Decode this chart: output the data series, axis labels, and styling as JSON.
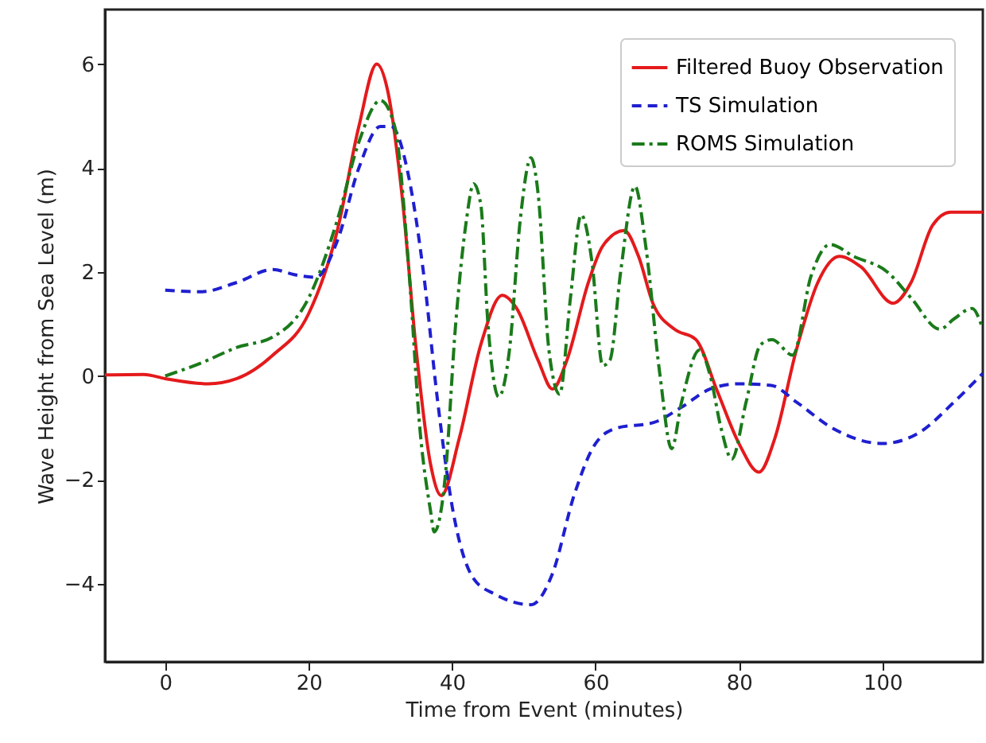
{
  "chart_data": {
    "type": "line",
    "xlabel": "Time from Event (minutes)",
    "ylabel": "Wave Height from Sea Level (m)",
    "xlim": [
      -8.4,
      114
    ],
    "ylim": [
      -5.5,
      7.05
    ],
    "xticks": [
      0,
      20,
      40,
      60,
      80,
      100
    ],
    "yticks": [
      -4,
      -2,
      0,
      2,
      4,
      6
    ],
    "grid": false,
    "legend": "top right",
    "marker": "none",
    "series": [
      {
        "name": "Filtered Buoy Observation",
        "color": "#e41a1c",
        "line_style": "solid",
        "x": [
          -8.4,
          -3,
          0,
          6,
          10,
          15,
          20,
          24,
          27,
          29.5,
          31,
          33,
          35,
          37,
          38.5,
          41,
          44,
          47,
          49,
          52,
          54,
          56,
          59,
          61,
          64,
          66,
          68,
          71,
          74,
          77,
          80,
          82.8,
          85,
          88,
          91,
          94,
          97,
          101.5,
          104,
          107,
          109.5,
          114
        ],
        "values": [
          0.02,
          0.03,
          -0.05,
          -0.15,
          -0.05,
          0.4,
          1.2,
          2.8,
          4.8,
          6.0,
          5.5,
          3.5,
          0.5,
          -1.7,
          -2.3,
          -1.2,
          0.6,
          1.55,
          1.3,
          0.3,
          -0.25,
          0.3,
          1.8,
          2.5,
          2.8,
          2.3,
          1.4,
          0.9,
          0.7,
          -0.3,
          -1.3,
          -1.85,
          -1.2,
          0.5,
          1.8,
          2.3,
          2.1,
          1.4,
          1.8,
          2.9,
          3.15,
          3.15
        ]
      },
      {
        "name": "TS Simulation",
        "color": "#1f1fd0",
        "line_style": "dashed",
        "x": [
          0,
          5,
          10,
          15,
          18,
          21,
          24,
          27,
          30,
          31.5,
          34,
          36,
          38,
          40,
          43,
          46,
          51,
          54,
          57,
          60,
          63,
          68,
          72,
          76,
          80,
          84.5,
          88,
          93,
          100,
          105,
          110,
          114
        ],
        "values": [
          1.65,
          1.62,
          1.8,
          2.05,
          1.95,
          1.9,
          2.6,
          4.0,
          4.8,
          4.8,
          3.8,
          2.0,
          -0.5,
          -2.5,
          -3.9,
          -4.2,
          -4.4,
          -3.8,
          -2.3,
          -1.3,
          -1.0,
          -0.9,
          -0.6,
          -0.25,
          -0.15,
          -0.18,
          -0.5,
          -1.0,
          -1.3,
          -1.1,
          -0.5,
          0.05
        ]
      },
      {
        "name": "ROMS Simulation",
        "color": "#1a7a1a",
        "line_style": "dashdot",
        "x": [
          0,
          5,
          10,
          15,
          20,
          24,
          27,
          30,
          32,
          34,
          35.5,
          37,
          37.5,
          39,
          40.5,
          42,
          43,
          44,
          45,
          46.5,
          48,
          49.5,
          51,
          52,
          53.5,
          55,
          56.5,
          58,
          59.5,
          61,
          62,
          63.5,
          65.5,
          67,
          69,
          70.6,
          72,
          74.5,
          76,
          77.5,
          79,
          81,
          83,
          84.6,
          87.5,
          90,
          92.7,
          96,
          100.7,
          104,
          108,
          110,
          112.5,
          114
        ],
        "values": [
          0.0,
          0.25,
          0.55,
          0.75,
          1.5,
          3.0,
          4.5,
          5.3,
          4.8,
          2.0,
          -1.0,
          -2.6,
          -3.0,
          -2.0,
          1.0,
          3.0,
          3.7,
          3.3,
          1.0,
          -0.4,
          0.5,
          3.0,
          4.2,
          3.5,
          0.5,
          -0.35,
          1.5,
          3.1,
          2.2,
          0.2,
          0.3,
          2.0,
          3.65,
          2.5,
          0.0,
          -1.4,
          -0.5,
          0.5,
          0.0,
          -1.0,
          -1.6,
          -0.5,
          0.6,
          0.7,
          0.4,
          1.9,
          2.53,
          2.3,
          2.0,
          1.5,
          0.9,
          1.1,
          1.3,
          0.9
        ]
      }
    ]
  }
}
